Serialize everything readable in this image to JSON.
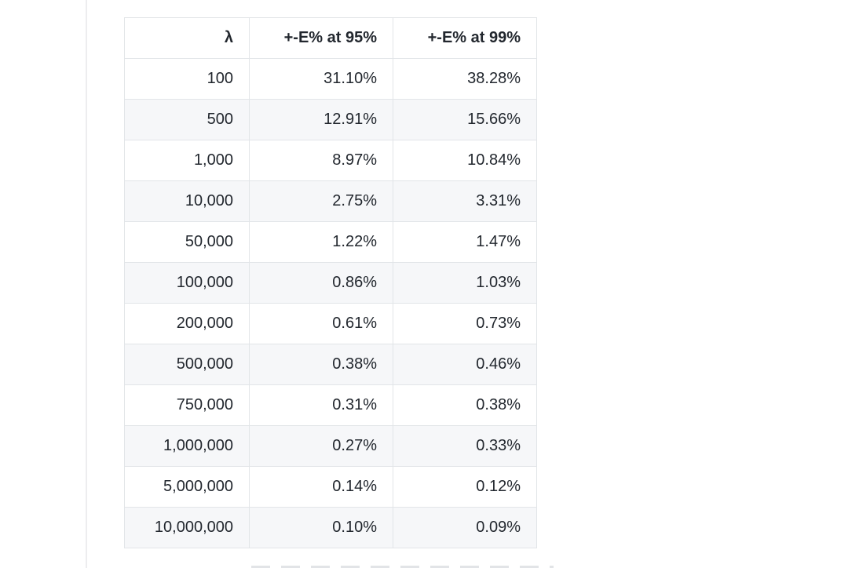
{
  "page": {
    "background_color": "#ffffff",
    "pane_divider_color": "#ededef"
  },
  "table": {
    "headers": [
      "λ",
      "+-E% at 95%",
      "+-E% at 99%"
    ],
    "rows": [
      [
        "100",
        "31.10%",
        "38.28%"
      ],
      [
        "500",
        "12.91%",
        "15.66%"
      ],
      [
        "1,000",
        "8.97%",
        "10.84%"
      ],
      [
        "10,000",
        "2.75%",
        "3.31%"
      ],
      [
        "50,000",
        "1.22%",
        "1.47%"
      ],
      [
        "100,000",
        "0.86%",
        "1.03%"
      ],
      [
        "200,000",
        "0.61%",
        "0.73%"
      ],
      [
        "500,000",
        "0.38%",
        "0.46%"
      ],
      [
        "750,000",
        "0.31%",
        "0.38%"
      ],
      [
        "1,000,000",
        "0.27%",
        "0.33%"
      ],
      [
        "5,000,000",
        "0.14%",
        "0.12%"
      ],
      [
        "10,000,000",
        "0.10%",
        "0.09%"
      ]
    ],
    "stripe_color": "#f6f7f9",
    "border_color": "#e2e5e8",
    "text_color": "#22272e"
  },
  "chart_data": {
    "type": "table",
    "columns": [
      "λ",
      "+-E% at 95%",
      "+-E% at 99%"
    ],
    "lambda_values": [
      100,
      500,
      1000,
      10000,
      50000,
      100000,
      200000,
      500000,
      750000,
      1000000,
      5000000,
      10000000
    ],
    "error_pct_at_95": [
      31.1,
      12.91,
      8.97,
      2.75,
      1.22,
      0.86,
      0.61,
      0.38,
      0.31,
      0.27,
      0.14,
      0.1
    ],
    "error_pct_at_99": [
      38.28,
      15.66,
      10.84,
      3.31,
      1.47,
      1.03,
      0.73,
      0.46,
      0.38,
      0.33,
      0.12,
      0.09
    ],
    "title": "",
    "layout_hints": {
      "alternating_row_stripes": true,
      "text_alignment": "right",
      "header_bold": true
    }
  }
}
